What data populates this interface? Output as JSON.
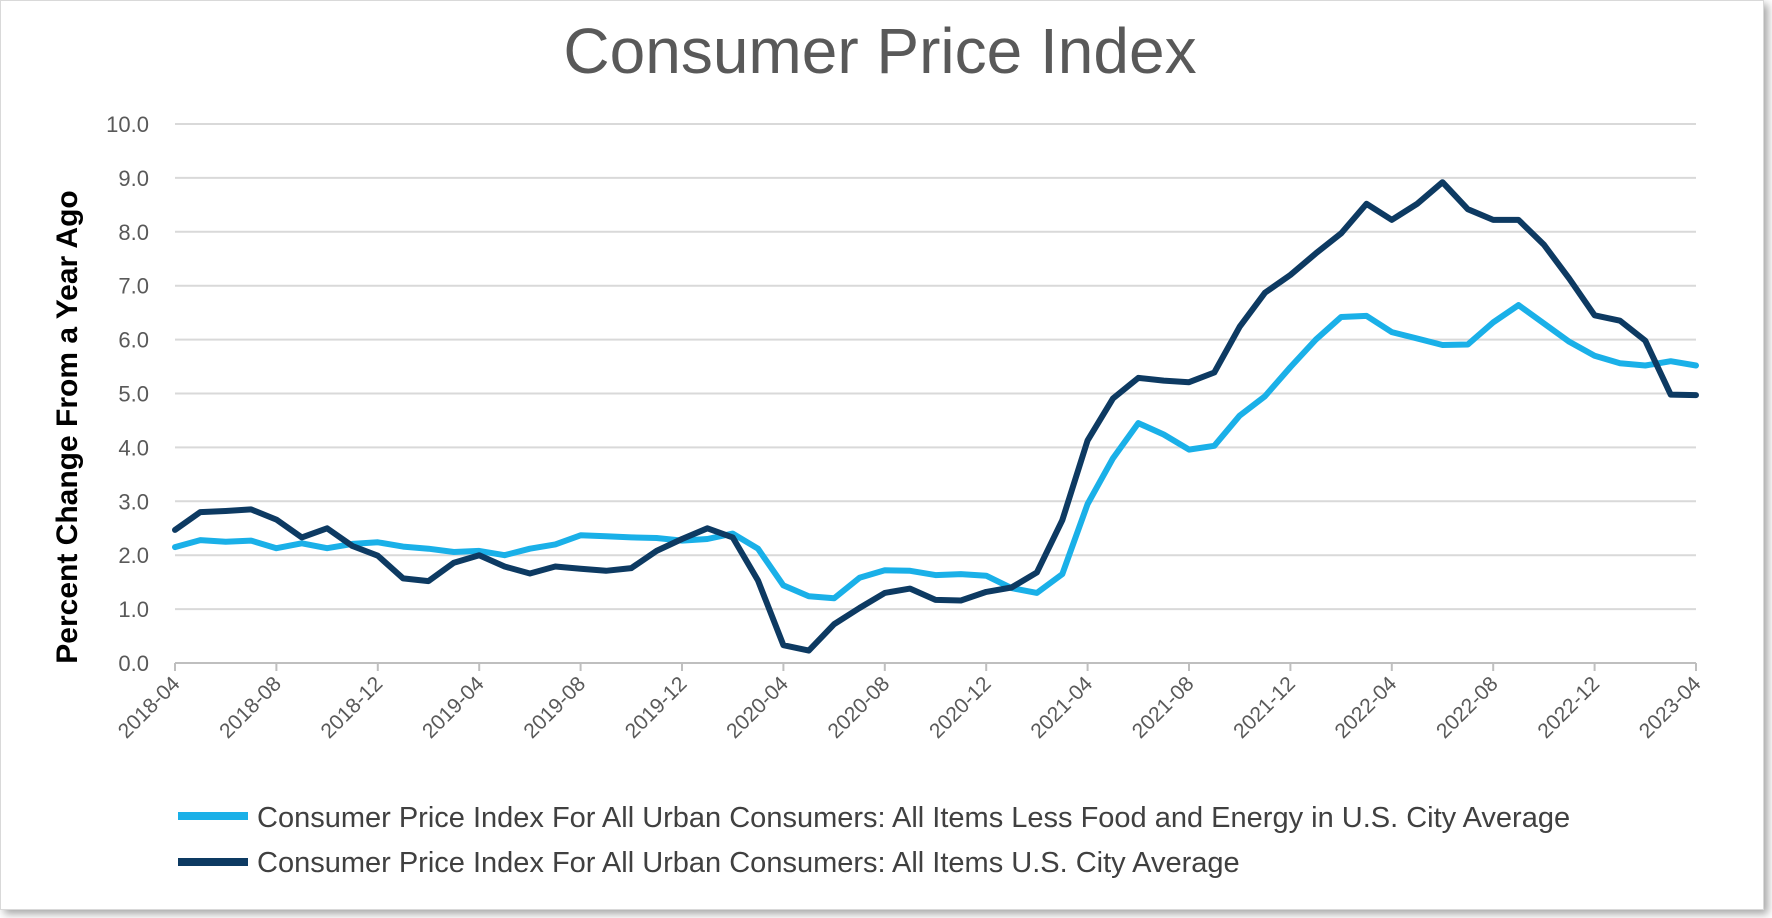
{
  "chart_data": {
    "type": "line",
    "title": "Consumer Price Index",
    "xlabel": "",
    "ylabel": "Percent Change From a Year Ago",
    "ylim": [
      0,
      10
    ],
    "yticks": [
      "0.0",
      "1.0",
      "2.0",
      "3.0",
      "4.0",
      "5.0",
      "6.0",
      "7.0",
      "8.0",
      "9.0",
      "10.0"
    ],
    "x": [
      "2018-04",
      "2018-05",
      "2018-06",
      "2018-07",
      "2018-08",
      "2018-09",
      "2018-10",
      "2018-11",
      "2018-12",
      "2019-01",
      "2019-02",
      "2019-03",
      "2019-04",
      "2019-05",
      "2019-06",
      "2019-07",
      "2019-08",
      "2019-09",
      "2019-10",
      "2019-11",
      "2019-12",
      "2020-01",
      "2020-02",
      "2020-03",
      "2020-04",
      "2020-05",
      "2020-06",
      "2020-07",
      "2020-08",
      "2020-09",
      "2020-10",
      "2020-11",
      "2020-12",
      "2021-01",
      "2021-02",
      "2021-03",
      "2021-04",
      "2021-05",
      "2021-06",
      "2021-07",
      "2021-08",
      "2021-09",
      "2021-10",
      "2021-11",
      "2021-12",
      "2022-01",
      "2022-02",
      "2022-03",
      "2022-04",
      "2022-05",
      "2022-06",
      "2022-07",
      "2022-08",
      "2022-09",
      "2022-10",
      "2022-11",
      "2022-12",
      "2023-01",
      "2023-02",
      "2023-03",
      "2023-04"
    ],
    "xtick_labels": [
      "2018-04",
      "2018-08",
      "2018-12",
      "2019-04",
      "2019-08",
      "2019-12",
      "2020-04",
      "2020-08",
      "2020-12",
      "2021-04",
      "2021-08",
      "2021-12",
      "2022-04",
      "2022-08",
      "2022-12",
      "2023-04"
    ],
    "series": [
      {
        "name": "Consumer Price Index For All Urban Consumers: All Items Less Food and Energy in U.S. City Average",
        "color": "#1ab0e8",
        "values": [
          2.15,
          2.28,
          2.25,
          2.27,
          2.13,
          2.22,
          2.13,
          2.21,
          2.24,
          2.16,
          2.12,
          2.06,
          2.08,
          2.0,
          2.12,
          2.2,
          2.37,
          2.35,
          2.33,
          2.32,
          2.27,
          2.3,
          2.4,
          2.12,
          1.44,
          1.24,
          1.2,
          1.58,
          1.72,
          1.71,
          1.63,
          1.65,
          1.62,
          1.39,
          1.3,
          1.65,
          2.95,
          3.8,
          4.45,
          4.24,
          3.96,
          4.03,
          4.59,
          4.95,
          5.49,
          6.0,
          6.42,
          6.44,
          6.14,
          6.02,
          5.9,
          5.91,
          6.32,
          6.64,
          6.3,
          5.96,
          5.7,
          5.56,
          5.52,
          5.6,
          5.52
        ]
      },
      {
        "name": "Consumer Price Index For All Urban Consumers: All Items U.S. City Average",
        "color": "#0d3a62",
        "values": [
          2.47,
          2.8,
          2.82,
          2.85,
          2.66,
          2.33,
          2.5,
          2.17,
          1.99,
          1.57,
          1.52,
          1.86,
          2.0,
          1.79,
          1.66,
          1.79,
          1.75,
          1.71,
          1.76,
          2.08,
          2.3,
          2.5,
          2.33,
          1.53,
          0.33,
          0.23,
          0.72,
          1.02,
          1.3,
          1.38,
          1.17,
          1.16,
          1.32,
          1.4,
          1.68,
          2.65,
          4.13,
          4.91,
          5.29,
          5.24,
          5.21,
          5.39,
          6.24,
          6.87,
          7.2,
          7.6,
          7.97,
          8.52,
          8.22,
          8.52,
          8.92,
          8.42,
          8.22,
          8.22,
          7.76,
          7.13,
          6.45,
          6.35,
          5.98,
          4.98,
          4.97
        ]
      }
    ]
  }
}
